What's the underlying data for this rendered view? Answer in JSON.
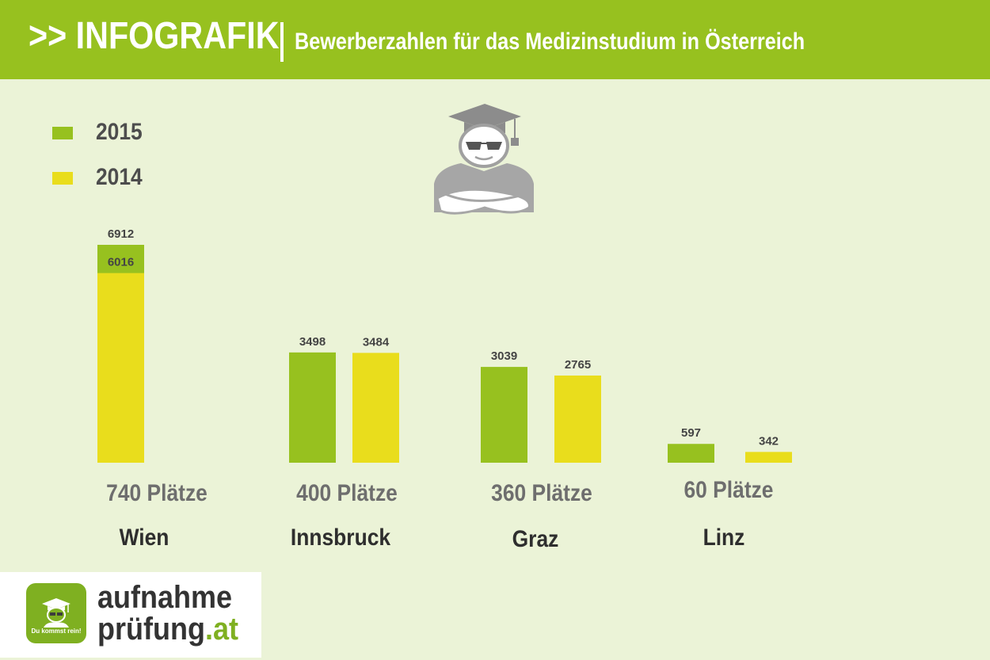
{
  "header": {
    "title": ">> INFOGRAFIK",
    "subtitle": "Bewerberzahlen für das Medizinstudium in Österreich"
  },
  "legend": [
    {
      "label": "2015",
      "color": "#97c11f"
    },
    {
      "label": "2014",
      "color": "#e9dd1c"
    }
  ],
  "icon": "graduate-with-sunglasses-icon",
  "chart_data": {
    "type": "bar",
    "title": "Bewerberzahlen für das Medizinstudium in Österreich",
    "categories": [
      "Wien",
      "Innsbruck",
      "Graz",
      "Linz"
    ],
    "places": [
      "740 Plätze",
      "400 Plätze",
      "360 Plätze",
      "60 Plätze"
    ],
    "series": [
      {
        "name": "2015",
        "color": "#97c11f",
        "values": [
          6912,
          3498,
          3039,
          597
        ]
      },
      {
        "name": "2014",
        "color": "#e9dd1c",
        "values": [
          6016,
          3484,
          2765,
          342
        ]
      }
    ],
    "ylim": [
      0,
      7000
    ],
    "grid": false,
    "legend_position": "top-left"
  },
  "logo": {
    "line1": "aufnahme",
    "line2": "prüfung",
    "suffix": ".at",
    "tagline": "Du kommst rein!",
    "icon": "graduate-badge-icon"
  }
}
